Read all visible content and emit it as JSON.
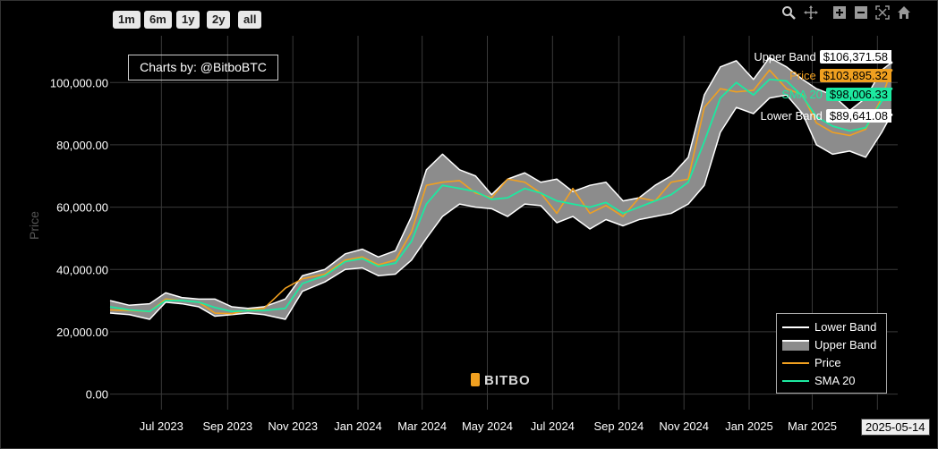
{
  "range_buttons": [
    "1m",
    "6m",
    "1y",
    "2y",
    "all"
  ],
  "toolbar_icons": [
    "zoom-icon",
    "pan-icon",
    "zoom-in-icon",
    "zoom-out-icon",
    "autoscale-icon",
    "reset-home-icon"
  ],
  "credit": "Charts by: @BitboBTC",
  "watermark": "BITBO",
  "date_marker": "2025-05-14",
  "end_labels": [
    {
      "name": "Upper Band",
      "value": "$106,371.58",
      "color": "#ffffff",
      "text": "#000000"
    },
    {
      "name": "Price",
      "value": "$103,895.32",
      "color": "#f0a020",
      "text": "#000000"
    },
    {
      "name": "SMA 20",
      "value": "$98,006.33",
      "color": "#1de9a0",
      "text": "#000000"
    },
    {
      "name": "Lower Band",
      "value": "$89,641.08",
      "color": "#ffffff",
      "text": "#000000"
    }
  ],
  "chart_data": {
    "type": "line",
    "ylabel": "Price",
    "xlabel": "",
    "ylim": [
      -5000,
      115000
    ],
    "y_ticks": [
      "0.00",
      "20,000.00",
      "40,000.00",
      "60,000.00",
      "80,000.00",
      "100,000.00"
    ],
    "y_tick_values": [
      0,
      20000,
      40000,
      60000,
      80000,
      100000
    ],
    "x_ticks": [
      "Jul 2023",
      "Sep 2023",
      "Nov 2023",
      "Jan 2024",
      "Mar 2024",
      "May 2024",
      "Jul 2024",
      "Sep 2024",
      "Nov 2024",
      "Jan 2025",
      "Mar 2025",
      "May 2025"
    ],
    "x_tick_visible_labels": [
      "Jul 2023",
      "Sep 2023",
      "Nov 2023",
      "Jan 2024",
      "Mar 2024",
      "May 2024",
      "Jul 2024",
      "Sep 2024",
      "Nov 2024",
      "Jan 2025",
      "Mar 2025",
      "M"
    ],
    "x_range": [
      "2023-05-14",
      "2025-05-20"
    ],
    "grid": true,
    "legend_position": "bottom-right",
    "colors": {
      "lower": "#ffffff",
      "upper_fill": "#8c8c8c",
      "price": "#f0a020",
      "sma": "#1de9a0"
    },
    "series": [
      {
        "name": "Lower Band",
        "x": [
          "2023-05-14",
          "2023-06-01",
          "2023-06-20",
          "2023-07-05",
          "2023-07-20",
          "2023-08-05",
          "2023-08-20",
          "2023-09-05",
          "2023-09-20",
          "2023-10-05",
          "2023-10-25",
          "2023-11-10",
          "2023-12-01",
          "2023-12-20",
          "2024-01-05",
          "2024-01-20",
          "2024-02-05",
          "2024-02-20",
          "2024-03-05",
          "2024-03-20",
          "2024-04-05",
          "2024-04-20",
          "2024-05-05",
          "2024-05-20",
          "2024-06-05",
          "2024-06-20",
          "2024-07-05",
          "2024-07-20",
          "2024-08-05",
          "2024-08-20",
          "2024-09-05",
          "2024-09-20",
          "2024-10-05",
          "2024-10-20",
          "2024-11-05",
          "2024-11-20",
          "2024-12-05",
          "2024-12-20",
          "2025-01-05",
          "2025-01-20",
          "2025-02-05",
          "2025-02-20",
          "2025-03-05",
          "2025-03-20",
          "2025-04-05",
          "2025-04-20",
          "2025-05-05",
          "2025-05-14"
        ],
        "values": [
          26000,
          25500,
          24000,
          29500,
          29000,
          28000,
          25000,
          25500,
          26000,
          25500,
          24000,
          33000,
          36000,
          40000,
          40500,
          38000,
          38500,
          43000,
          50000,
          57000,
          61000,
          60000,
          59500,
          57000,
          61000,
          60500,
          55000,
          57000,
          53000,
          56000,
          54000,
          56000,
          57000,
          58000,
          61000,
          67000,
          84000,
          92000,
          90000,
          95000,
          96000,
          90000,
          80000,
          77000,
          78000,
          76000,
          84000,
          89641
        ]
      },
      {
        "name": "Upper Band",
        "x": [
          "2023-05-14",
          "2023-06-01",
          "2023-06-20",
          "2023-07-05",
          "2023-07-20",
          "2023-08-05",
          "2023-08-20",
          "2023-09-05",
          "2023-09-20",
          "2023-10-05",
          "2023-10-25",
          "2023-11-10",
          "2023-12-01",
          "2023-12-20",
          "2024-01-05",
          "2024-01-20",
          "2024-02-05",
          "2024-02-20",
          "2024-03-05",
          "2024-03-20",
          "2024-04-05",
          "2024-04-20",
          "2024-05-05",
          "2024-05-20",
          "2024-06-05",
          "2024-06-20",
          "2024-07-05",
          "2024-07-20",
          "2024-08-05",
          "2024-08-20",
          "2024-09-05",
          "2024-09-20",
          "2024-10-05",
          "2024-10-20",
          "2024-11-05",
          "2024-11-20",
          "2024-12-05",
          "2024-12-20",
          "2025-01-05",
          "2025-01-20",
          "2025-02-05",
          "2025-02-20",
          "2025-03-05",
          "2025-03-20",
          "2025-04-05",
          "2025-04-20",
          "2025-05-05",
          "2025-05-14"
        ],
        "values": [
          30000,
          28500,
          29000,
          32500,
          31000,
          30500,
          30500,
          28000,
          27500,
          28000,
          30500,
          38000,
          40000,
          45000,
          46500,
          44000,
          46000,
          57000,
          72000,
          77000,
          72000,
          70000,
          64000,
          69000,
          71000,
          68000,
          69000,
          65000,
          67000,
          68000,
          62000,
          63000,
          67000,
          70000,
          76000,
          96000,
          105000,
          107000,
          101000,
          108000,
          105000,
          101000,
          98000,
          96000,
          91000,
          95000,
          104000,
          106371
        ]
      },
      {
        "name": "Price",
        "x": [
          "2023-05-14",
          "2023-06-01",
          "2023-06-20",
          "2023-07-05",
          "2023-07-20",
          "2023-08-05",
          "2023-08-20",
          "2023-09-05",
          "2023-09-20",
          "2023-10-05",
          "2023-10-25",
          "2023-11-10",
          "2023-12-01",
          "2023-12-20",
          "2024-01-05",
          "2024-01-20",
          "2024-02-05",
          "2024-02-20",
          "2024-03-05",
          "2024-03-20",
          "2024-04-05",
          "2024-04-20",
          "2024-05-05",
          "2024-05-20",
          "2024-06-05",
          "2024-06-20",
          "2024-07-05",
          "2024-07-20",
          "2024-08-05",
          "2024-08-20",
          "2024-09-05",
          "2024-09-20",
          "2024-10-05",
          "2024-10-20",
          "2024-11-05",
          "2024-11-20",
          "2024-12-05",
          "2024-12-20",
          "2025-01-05",
          "2025-01-20",
          "2025-02-05",
          "2025-02-20",
          "2025-03-05",
          "2025-03-20",
          "2025-04-05",
          "2025-04-20",
          "2025-05-05",
          "2025-05-14"
        ],
        "values": [
          27000,
          26800,
          26500,
          30500,
          30000,
          29500,
          26000,
          25800,
          27000,
          27500,
          34000,
          37000,
          38500,
          43000,
          44000,
          41500,
          43000,
          52000,
          67000,
          68000,
          68500,
          64500,
          63000,
          69000,
          68000,
          64500,
          58000,
          66000,
          58000,
          60500,
          57000,
          63000,
          62000,
          68000,
          69000,
          92000,
          98000,
          97000,
          97500,
          104000,
          98000,
          96000,
          87000,
          84000,
          83000,
          85000,
          95000,
          103895
        ]
      },
      {
        "name": "SMA 20",
        "x": [
          "2023-05-14",
          "2023-06-01",
          "2023-06-20",
          "2023-07-05",
          "2023-07-20",
          "2023-08-05",
          "2023-08-20",
          "2023-09-05",
          "2023-09-20",
          "2023-10-05",
          "2023-10-25",
          "2023-11-10",
          "2023-12-01",
          "2023-12-20",
          "2024-01-05",
          "2024-01-20",
          "2024-02-05",
          "2024-02-20",
          "2024-03-05",
          "2024-03-20",
          "2024-04-05",
          "2024-04-20",
          "2024-05-05",
          "2024-05-20",
          "2024-06-05",
          "2024-06-20",
          "2024-07-05",
          "2024-07-20",
          "2024-08-05",
          "2024-08-20",
          "2024-09-05",
          "2024-09-20",
          "2024-10-05",
          "2024-10-20",
          "2024-11-05",
          "2024-11-20",
          "2024-12-05",
          "2024-12-20",
          "2025-01-05",
          "2025-01-20",
          "2025-02-05",
          "2025-02-20",
          "2025-03-05",
          "2025-03-20",
          "2025-04-05",
          "2025-04-20",
          "2025-05-05",
          "2025-05-14"
        ],
        "values": [
          28000,
          27000,
          26500,
          30000,
          30000,
          29500,
          27800,
          26500,
          26800,
          26800,
          27500,
          35500,
          38000,
          42500,
          43500,
          41000,
          42000,
          49000,
          61000,
          67000,
          66000,
          65000,
          62500,
          63000,
          66000,
          64500,
          62000,
          61000,
          60000,
          61500,
          58000,
          60000,
          62000,
          64000,
          68000,
          81000,
          95000,
          100000,
          96000,
          101000,
          100500,
          95500,
          89000,
          86000,
          84500,
          85500,
          94000,
          98006
        ]
      }
    ]
  }
}
